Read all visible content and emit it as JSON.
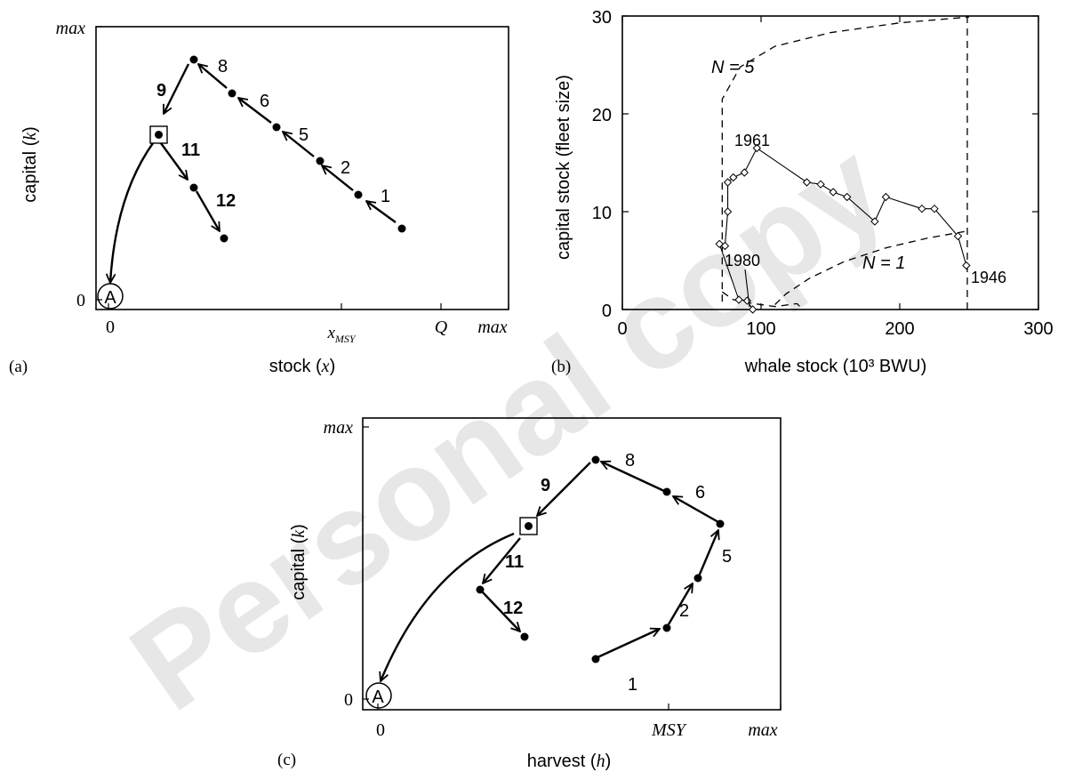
{
  "chart_data": [
    {
      "type": "scatter",
      "panel_label": "(a)",
      "xlabel": "stock (x)",
      "ylabel": "capital (k)",
      "x_ticks": [
        "0",
        "x_MSY",
        "Q",
        "max"
      ],
      "y_ticks": [
        "0",
        "max"
      ],
      "points": [
        {
          "label": "1",
          "x": 0.72,
          "y": 0.29
        },
        {
          "label": "2",
          "x": 0.63,
          "y": 0.4
        },
        {
          "label": "5",
          "x": 0.53,
          "y": 0.52
        },
        {
          "label": "6",
          "x": 0.42,
          "y": 0.64
        },
        {
          "label": "8",
          "x": 0.31,
          "y": 0.76
        },
        {
          "label": "9",
          "x": 0.19,
          "y": 0.55
        },
        {
          "label": "11",
          "x": 0.26,
          "y": 0.39
        },
        {
          "label": "12",
          "x": 0.33,
          "y": 0.23
        },
        {
          "label": "A",
          "x": 0.0,
          "y": 0.0
        }
      ]
    },
    {
      "type": "line",
      "panel_label": "(b)",
      "xlabel": "whale stock (10³ BWU)",
      "ylabel": "capital stock (fleet size)",
      "xlim": [
        0,
        300
      ],
      "ylim": [
        0,
        30
      ],
      "x_ticks": [
        "0",
        "100",
        "200",
        "300"
      ],
      "y_ticks": [
        "0",
        "10",
        "20",
        "30"
      ],
      "series": [
        {
          "values_xy": [
            [
              248,
              4.5
            ],
            [
              242,
              7.5
            ],
            [
              225,
              10.3
            ],
            [
              216,
              10.3
            ],
            [
              190,
              11.5
            ],
            [
              182,
              9.0
            ],
            [
              162,
              11.5
            ],
            [
              152,
              12.0
            ],
            [
              143,
              12.8
            ],
            [
              133,
              13.0
            ],
            [
              97,
              16.5
            ],
            [
              88,
              14.0
            ],
            [
              80,
              13.5
            ],
            [
              76,
              13.0
            ],
            [
              76,
              10.0
            ],
            [
              74,
              6.5
            ],
            [
              70,
              6.7
            ],
            [
              84,
              1.0
            ],
            [
              90,
              0.9
            ],
            [
              94,
              0.0
            ]
          ]
        }
      ],
      "curves": [
        {
          "label": "N = 5",
          "values_xy": [
            [
              72,
              0.8
            ],
            [
              72,
              21.5
            ],
            [
              85,
              24.8
            ],
            [
              110,
              26.9
            ],
            [
              150,
              28.3
            ],
            [
              200,
              29.3
            ],
            [
              250,
              29.9
            ]
          ]
        },
        {
          "label": "N = 1",
          "values_xy": [
            [
              110,
              0.5
            ],
            [
              118,
              1.6
            ],
            [
              135,
              3.2
            ],
            [
              160,
              4.9
            ],
            [
              190,
              6.3
            ],
            [
              220,
              7.3
            ],
            [
              248,
              8.0
            ]
          ]
        },
        {
          "values_xy": [
            [
              72,
              1.8
            ],
            [
              80,
              1.0
            ],
            [
              95,
              0.6
            ],
            [
              110,
              0.3
            ],
            [
              126,
              0.6
            ],
            [
              130,
              0.0
            ]
          ]
        }
      ],
      "annotations": [
        "1961",
        "1980",
        "1946"
      ]
    },
    {
      "type": "scatter",
      "panel_label": "(c)",
      "xlabel": "harvest (h)",
      "ylabel": "capital (k)",
      "x_ticks": [
        "0",
        "MSY",
        "max"
      ],
      "y_ticks": [
        "0",
        "max"
      ],
      "points": [
        {
          "label": "1",
          "x": 0.54,
          "y": 0.18
        },
        {
          "label": "2",
          "x": 0.71,
          "y": 0.29
        },
        {
          "label": "5",
          "x": 0.8,
          "y": 0.47
        },
        {
          "label": "6",
          "x": 0.76,
          "y": 0.72
        },
        {
          "label": "8",
          "x": 0.55,
          "y": 0.87
        },
        {
          "label": "9",
          "x": 0.39,
          "y": 0.62
        },
        {
          "label": "11",
          "x": 0.27,
          "y": 0.41
        },
        {
          "label": "12",
          "x": 0.38,
          "y": 0.24
        },
        {
          "label": "A",
          "x": 0.0,
          "y": 0.0
        }
      ]
    }
  ],
  "watermark": "Personal copy"
}
